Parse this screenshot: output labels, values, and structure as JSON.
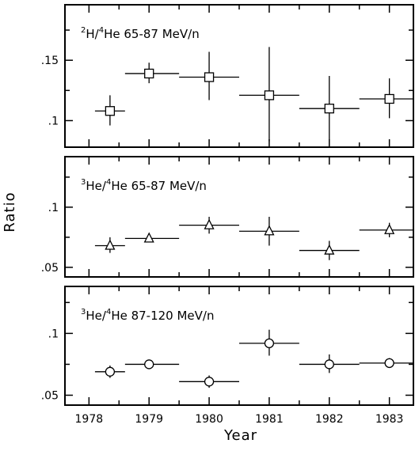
{
  "chart_data": {
    "type": "scatter",
    "xlabel": "Year",
    "ylabel": "Ratio",
    "x_ticks": [
      "1978",
      "1979",
      "1980",
      "1981",
      "1982",
      "1983"
    ],
    "xlim": [
      1977.6,
      1983.4
    ],
    "panels": [
      {
        "label_parts": [
          "2",
          "H/",
          "4",
          "He 65-87 MeV/n"
        ],
        "marker": "square",
        "ylim": [
          0.078,
          0.196
        ],
        "y_ticks": [
          {
            "value": 0.1,
            "label": ".1"
          },
          {
            "value": 0.15,
            "label": ".15"
          }
        ],
        "y_minor_step": 0.025,
        "points": [
          {
            "x": 1978.35,
            "x_lo": 1978.1,
            "x_hi": 1978.6,
            "y": 0.108,
            "y_lo": 0.096,
            "y_hi": 0.121
          },
          {
            "x": 1979.0,
            "x_lo": 1978.6,
            "x_hi": 1979.5,
            "y": 0.139,
            "y_lo": 0.131,
            "y_hi": 0.148
          },
          {
            "x": 1980.0,
            "x_lo": 1979.5,
            "x_hi": 1980.5,
            "y": 0.136,
            "y_lo": 0.117,
            "y_hi": 0.157
          },
          {
            "x": 1981.0,
            "x_lo": 1980.5,
            "x_hi": 1981.5,
            "y": 0.121,
            "y_lo": 0.083,
            "y_hi": 0.161
          },
          {
            "x": 1982.0,
            "x_lo": 1981.5,
            "x_hi": 1982.5,
            "y": 0.11,
            "y_lo": 0.084,
            "y_hi": 0.137
          },
          {
            "x": 1983.0,
            "x_lo": 1982.5,
            "x_hi": 1983.4,
            "y": 0.118,
            "y_lo": 0.102,
            "y_hi": 0.135
          }
        ]
      },
      {
        "label_parts": [
          "3",
          "He/",
          "4",
          "He 65-87 MeV/n"
        ],
        "marker": "triangle",
        "ylim": [
          0.042,
          0.142
        ],
        "y_ticks": [
          {
            "value": 0.05,
            "label": ".05"
          },
          {
            "value": 0.1,
            "label": ".1"
          }
        ],
        "y_minor_step": 0.025,
        "points": [
          {
            "x": 1978.35,
            "x_lo": 1978.1,
            "x_hi": 1978.6,
            "y": 0.068,
            "y_lo": 0.062,
            "y_hi": 0.075
          },
          {
            "x": 1979.0,
            "x_lo": 1978.6,
            "x_hi": 1979.5,
            "y": 0.074,
            "y_lo": 0.071,
            "y_hi": 0.077
          },
          {
            "x": 1980.0,
            "x_lo": 1979.5,
            "x_hi": 1980.5,
            "y": 0.085,
            "y_lo": 0.078,
            "y_hi": 0.092
          },
          {
            "x": 1981.0,
            "x_lo": 1980.5,
            "x_hi": 1981.5,
            "y": 0.08,
            "y_lo": 0.068,
            "y_hi": 0.092
          },
          {
            "x": 1982.0,
            "x_lo": 1981.5,
            "x_hi": 1982.5,
            "y": 0.064,
            "y_lo": 0.056,
            "y_hi": 0.072
          },
          {
            "x": 1983.0,
            "x_lo": 1982.5,
            "x_hi": 1983.4,
            "y": 0.081,
            "y_lo": 0.075,
            "y_hi": 0.087
          }
        ]
      },
      {
        "label_parts": [
          "3",
          "He/",
          "4",
          "He 87-120 MeV/n"
        ],
        "marker": "circle",
        "ylim": [
          0.042,
          0.138
        ],
        "y_ticks": [
          {
            "value": 0.05,
            "label": ".05"
          },
          {
            "value": 0.1,
            "label": ".1"
          }
        ],
        "y_minor_step": 0.025,
        "points": [
          {
            "x": 1978.35,
            "x_lo": 1978.1,
            "x_hi": 1978.6,
            "y": 0.069,
            "y_lo": 0.064,
            "y_hi": 0.074
          },
          {
            "x": 1979.0,
            "x_lo": 1978.6,
            "x_hi": 1979.5,
            "y": 0.075,
            "y_lo": 0.072,
            "y_hi": 0.078
          },
          {
            "x": 1980.0,
            "x_lo": 1979.5,
            "x_hi": 1980.5,
            "y": 0.061,
            "y_lo": 0.056,
            "y_hi": 0.066
          },
          {
            "x": 1981.0,
            "x_lo": 1980.5,
            "x_hi": 1981.5,
            "y": 0.092,
            "y_lo": 0.082,
            "y_hi": 0.103
          },
          {
            "x": 1982.0,
            "x_lo": 1981.5,
            "x_hi": 1982.5,
            "y": 0.075,
            "y_lo": 0.068,
            "y_hi": 0.083
          },
          {
            "x": 1983.0,
            "x_lo": 1982.5,
            "x_hi": 1983.4,
            "y": 0.076,
            "y_lo": 0.072,
            "y_hi": 0.08
          }
        ]
      }
    ]
  }
}
